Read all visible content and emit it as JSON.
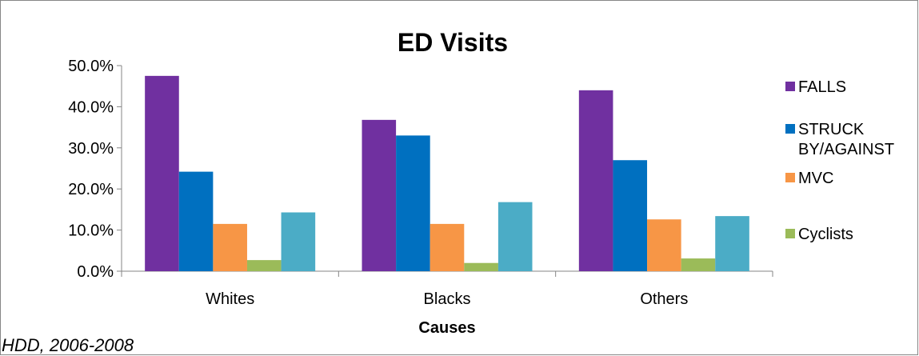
{
  "chart_data": {
    "type": "bar",
    "title": "ED Visits",
    "xlabel": "Causes",
    "ylabel": "",
    "categories": [
      "Whites",
      "Blacks",
      "Others"
    ],
    "ylim": [
      0,
      50
    ],
    "yticks": [
      "0.0%",
      "10.0%",
      "20.0%",
      "30.0%",
      "40.0%",
      "50.0%"
    ],
    "grid": false,
    "legend_position": "right",
    "series": [
      {
        "name": "FALLS",
        "color": "#7030A0",
        "values": [
          47.5,
          36.8,
          44.0
        ]
      },
      {
        "name": "STRUCK BY/AGAINST",
        "color": "#0070C0",
        "values": [
          24.2,
          33.0,
          27.0
        ]
      },
      {
        "name": "MVC",
        "color": "#F79646",
        "values": [
          11.5,
          11.5,
          12.6
        ]
      },
      {
        "name": "Cyclists",
        "color": "#9BBB59",
        "values": [
          2.7,
          2.0,
          3.1
        ]
      },
      {
        "name": "",
        "color": "#4BACC6",
        "values": [
          14.3,
          16.8,
          13.4
        ]
      }
    ],
    "legend_entries": [
      "FALLS",
      "STRUCK BY/AGAINST",
      "MVC",
      "Cyclists"
    ]
  },
  "footnote": "HDD, 2006-2008"
}
